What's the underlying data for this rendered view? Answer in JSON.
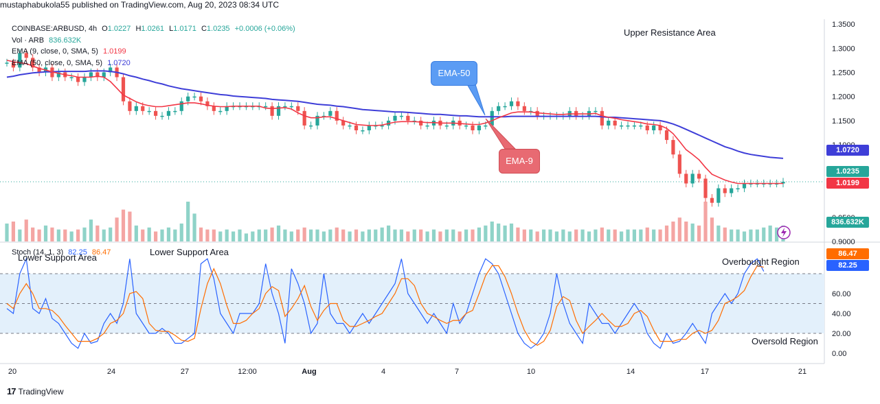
{
  "header": {
    "attribution": "mustaphabukola55 published on TradingView.com, Aug 20, 2023 08:34 UTC"
  },
  "legend": {
    "symbol": "COINBASE:ARBUSD, 4h",
    "o_label": "O",
    "o": "1.0227",
    "h_label": "H",
    "h": "1.0261",
    "l_label": "L",
    "l": "1.0171",
    "c_label": "C",
    "c": "1.0235",
    "change": "+0.0006 (+0.06%)",
    "vol_label": "Vol · ARB",
    "vol": "836.632K",
    "ema9_label": "EMA (9, close, 0, SMA, 5)",
    "ema9": "1.0199",
    "ema50_label": "EMA (50, close, 0, SMA, 5)",
    "ema50": "1.0720",
    "stoch_label": "Stoch (14, 1, 3)",
    "stoch_k": "82.25",
    "stoch_d": "86.47"
  },
  "annotations": {
    "upper_resistance": "Upper Resistance Area",
    "lower_support_1": "Lower Support Area",
    "lower_support_2": "Lower Support Area",
    "overbought": "Overbought Region",
    "oversold": "Oversold Region",
    "ema50_callout": "EMA-50",
    "ema9_callout": "EMA-9"
  },
  "price_tags": {
    "ema50": "1.0720",
    "close": "1.0235",
    "ema9": "1.0199",
    "volume": "836.632K",
    "stoch_d": "86.47",
    "stoch_k": "82.25"
  },
  "colors": {
    "up": "#26a69a",
    "down": "#ef5350",
    "ema9": "#f23645",
    "ema50": "#3e3ed8",
    "stoch_k": "#2962ff",
    "stoch_d": "#ff6d00",
    "band": "#e3f0fb",
    "callout_blue": "#5b9cf4",
    "callout_red": "#e86a72"
  },
  "footer": {
    "brand": "TradingView",
    "logo_icon": "tradingview-logo-icon"
  },
  "chart_data": [
    {
      "type": "candlestick",
      "title": "COINBASE:ARBUSD, 4h",
      "x_ticks": [
        "20",
        "24",
        "27",
        "12:00",
        "Aug",
        "4",
        "7",
        "10",
        "14",
        "17",
        "21"
      ],
      "y_ticks": [
        "1.3500",
        "1.3000",
        "1.2500",
        "1.2000",
        "1.1500",
        "1.1000",
        "1.0500",
        "0.9500",
        "0.9000"
      ],
      "ylim": [
        0.9,
        1.36
      ],
      "close": [
        1.27,
        1.26,
        1.29,
        1.28,
        1.26,
        1.25,
        1.26,
        1.24,
        1.25,
        1.24,
        1.24,
        1.23,
        1.24,
        1.25,
        1.24,
        1.25,
        1.26,
        1.24,
        1.19,
        1.17,
        1.18,
        1.17,
        1.17,
        1.16,
        1.16,
        1.17,
        1.17,
        1.19,
        1.2,
        1.2,
        1.19,
        1.18,
        1.17,
        1.17,
        1.18,
        1.18,
        1.18,
        1.18,
        1.18,
        1.18,
        1.18,
        1.16,
        1.18,
        1.18,
        1.18,
        1.17,
        1.14,
        1.14,
        1.16,
        1.16,
        1.17,
        1.15,
        1.14,
        1.14,
        1.13,
        1.13,
        1.14,
        1.14,
        1.14,
        1.15,
        1.16,
        1.16,
        1.15,
        1.15,
        1.14,
        1.14,
        1.15,
        1.14,
        1.14,
        1.15,
        1.14,
        1.14,
        1.13,
        1.14,
        1.14,
        1.17,
        1.18,
        1.18,
        1.19,
        1.18,
        1.17,
        1.17,
        1.16,
        1.16,
        1.16,
        1.16,
        1.16,
        1.17,
        1.16,
        1.16,
        1.17,
        1.17,
        1.14,
        1.15,
        1.14,
        1.14,
        1.14,
        1.14,
        1.14,
        1.13,
        1.14,
        1.13,
        1.11,
        1.08,
        1.04,
        1.02,
        1.04,
        1.03,
        0.99,
        0.98,
        1.01,
        1.0,
        1.01,
        1.01,
        1.02,
        1.02,
        1.02,
        1.02,
        1.02,
        1.02,
        1.0235
      ],
      "ema9": [
        1.275,
        1.272,
        1.27,
        1.268,
        1.263,
        1.258,
        1.255,
        1.251,
        1.248,
        1.245,
        1.243,
        1.24,
        1.24,
        1.24,
        1.242,
        1.24,
        1.231,
        1.217,
        1.203,
        1.196,
        1.189,
        1.184,
        1.181,
        1.179,
        1.179,
        1.181,
        1.183,
        1.185,
        1.187,
        1.187,
        1.185,
        1.182,
        1.18,
        1.179,
        1.179,
        1.18,
        1.18,
        1.18,
        1.18,
        1.18,
        1.176,
        1.175,
        1.176,
        1.177,
        1.174,
        1.166,
        1.16,
        1.156,
        1.156,
        1.158,
        1.158,
        1.154,
        1.15,
        1.146,
        1.142,
        1.141,
        1.14,
        1.14,
        1.141,
        1.144,
        1.147,
        1.148,
        1.148,
        1.148,
        1.147,
        1.146,
        1.146,
        1.145,
        1.145,
        1.145,
        1.144,
        1.143,
        1.142,
        1.142,
        1.145,
        1.15,
        1.156,
        1.161,
        1.166,
        1.168,
        1.168,
        1.168,
        1.166,
        1.165,
        1.164,
        1.163,
        1.163,
        1.164,
        1.164,
        1.164,
        1.164,
        1.165,
        1.16,
        1.157,
        1.155,
        1.152,
        1.15,
        1.148,
        1.146,
        1.143,
        1.142,
        1.14,
        1.134,
        1.123,
        1.107,
        1.09,
        1.08,
        1.069,
        1.053,
        1.039,
        1.033,
        1.027,
        1.023,
        1.02,
        1.02,
        1.02,
        1.02,
        1.02,
        1.02,
        1.02,
        1.0199
      ],
      "ema50": [
        1.24,
        1.242,
        1.245,
        1.247,
        1.249,
        1.25,
        1.251,
        1.251,
        1.252,
        1.252,
        1.252,
        1.252,
        1.252,
        1.253,
        1.253,
        1.253,
        1.252,
        1.25,
        1.247,
        1.243,
        1.24,
        1.236,
        1.233,
        1.229,
        1.226,
        1.222,
        1.219,
        1.216,
        1.214,
        1.212,
        1.21,
        1.208,
        1.206,
        1.204,
        1.203,
        1.201,
        1.2,
        1.199,
        1.198,
        1.197,
        1.196,
        1.194,
        1.193,
        1.192,
        1.191,
        1.19,
        1.188,
        1.186,
        1.184,
        1.183,
        1.182,
        1.18,
        1.179,
        1.177,
        1.175,
        1.173,
        1.172,
        1.171,
        1.17,
        1.169,
        1.168,
        1.168,
        1.167,
        1.166,
        1.165,
        1.164,
        1.163,
        1.163,
        1.162,
        1.161,
        1.16,
        1.16,
        1.159,
        1.158,
        1.158,
        1.158,
        1.158,
        1.158,
        1.159,
        1.159,
        1.159,
        1.159,
        1.159,
        1.159,
        1.159,
        1.159,
        1.159,
        1.159,
        1.159,
        1.159,
        1.159,
        1.159,
        1.158,
        1.157,
        1.157,
        1.156,
        1.155,
        1.154,
        1.153,
        1.152,
        1.151,
        1.15,
        1.147,
        1.143,
        1.138,
        1.132,
        1.126,
        1.12,
        1.114,
        1.108,
        1.102,
        1.096,
        1.092,
        1.087,
        1.083,
        1.08,
        1.078,
        1.076,
        1.074,
        1.073,
        1.072
      ],
      "volume": [
        0.45,
        0.5,
        0.3,
        0.55,
        0.35,
        0.3,
        0.4,
        0.35,
        0.3,
        0.3,
        0.25,
        0.3,
        0.35,
        0.55,
        0.4,
        0.3,
        0.35,
        0.6,
        0.8,
        0.75,
        0.4,
        0.3,
        0.35,
        0.25,
        0.3,
        0.35,
        0.3,
        0.45,
        1.0,
        0.7,
        0.35,
        0.3,
        0.3,
        0.25,
        0.3,
        0.25,
        0.3,
        0.2,
        0.25,
        0.3,
        0.3,
        0.35,
        0.4,
        0.3,
        0.25,
        0.3,
        0.35,
        0.3,
        0.3,
        0.25,
        0.3,
        0.35,
        0.3,
        0.25,
        0.3,
        0.25,
        0.3,
        0.3,
        0.35,
        0.4,
        0.3,
        0.3,
        0.25,
        0.3,
        0.3,
        0.25,
        0.3,
        0.25,
        0.3,
        0.3,
        0.25,
        0.3,
        0.3,
        0.35,
        0.4,
        0.5,
        0.45,
        0.4,
        0.45,
        0.35,
        0.3,
        0.3,
        0.25,
        0.3,
        0.3,
        0.25,
        0.3,
        0.25,
        0.3,
        0.3,
        0.25,
        0.3,
        0.35,
        0.3,
        0.3,
        0.25,
        0.3,
        0.3,
        0.3,
        0.35,
        0.3,
        0.3,
        0.4,
        0.5,
        0.6,
        0.5,
        0.45,
        0.4,
        1.0,
        0.6,
        0.4,
        0.35,
        0.3,
        0.3,
        0.25,
        0.3,
        0.3,
        0.35,
        0.4,
        0.35,
        0.4
      ]
    },
    {
      "type": "line",
      "title": "Stoch (14, 1, 3)",
      "y_ticks": [
        "100.00",
        "60.00",
        "40.00",
        "20.00",
        "0.00"
      ],
      "ylim": [
        0,
        100
      ],
      "series": [
        {
          "name": "82.25",
          "values": [
            45,
            40,
            80,
            95,
            45,
            40,
            55,
            35,
            30,
            20,
            10,
            5,
            20,
            10,
            12,
            30,
            40,
            30,
            50,
            95,
            40,
            30,
            20,
            20,
            25,
            20,
            10,
            10,
            15,
            20,
            90,
            95,
            75,
            40,
            30,
            20,
            40,
            40,
            40,
            50,
            90,
            60,
            40,
            10,
            85,
            70,
            50,
            20,
            30,
            80,
            40,
            30,
            30,
            20,
            30,
            40,
            30,
            40,
            50,
            60,
            70,
            95,
            60,
            50,
            40,
            30,
            40,
            30,
            20,
            50,
            30,
            40,
            60,
            80,
            95,
            90,
            80,
            60,
            40,
            20,
            10,
            5,
            10,
            20,
            40,
            80,
            50,
            30,
            20,
            10,
            50,
            40,
            30,
            30,
            20,
            30,
            40,
            50,
            40,
            20,
            10,
            5,
            20,
            10,
            12,
            20,
            30,
            20,
            10,
            40,
            50,
            60,
            50,
            60,
            80,
            90,
            95,
            82.25
          ]
        },
        {
          "name": "86.47",
          "values": [
            50,
            45,
            60,
            70,
            60,
            45,
            45,
            43,
            37,
            28,
            20,
            12,
            12,
            12,
            15,
            20,
            30,
            33,
            40,
            60,
            62,
            55,
            30,
            23,
            22,
            22,
            18,
            13,
            12,
            15,
            45,
            70,
            85,
            70,
            48,
            30,
            30,
            33,
            40,
            45,
            60,
            67,
            63,
            37,
            45,
            55,
            68,
            47,
            33,
            43,
            50,
            50,
            33,
            27,
            27,
            30,
            33,
            37,
            40,
            50,
            60,
            75,
            75,
            68,
            50,
            40,
            37,
            33,
            30,
            33,
            33,
            40,
            43,
            60,
            78,
            88,
            88,
            77,
            60,
            40,
            23,
            12,
            8,
            12,
            23,
            47,
            57,
            53,
            33,
            20,
            27,
            33,
            40,
            33,
            27,
            27,
            30,
            40,
            43,
            37,
            23,
            12,
            12,
            12,
            14,
            14,
            20,
            23,
            20,
            23,
            33,
            50,
            53,
            57,
            63,
            77,
            88,
            86.47
          ]
        }
      ]
    }
  ]
}
